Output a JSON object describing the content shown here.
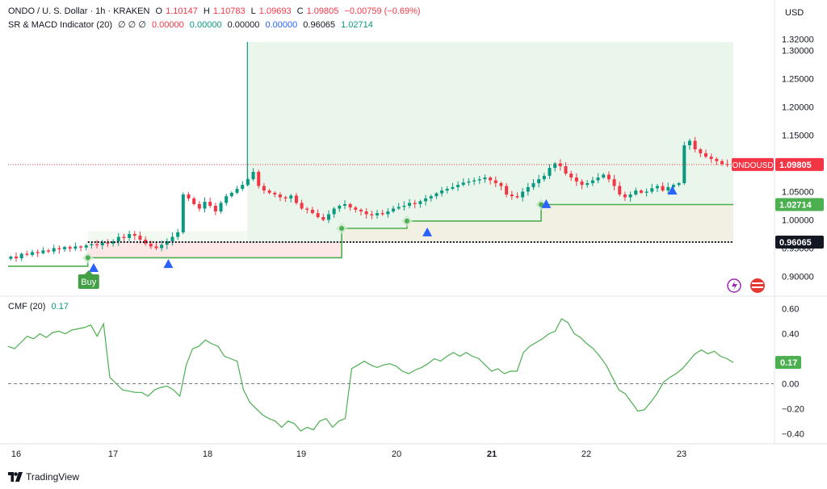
{
  "header": {
    "symbol": "ONDO / U. S. Dollar · 1h · KRAKEN",
    "o_label": "O",
    "o": "1.10147",
    "h_label": "H",
    "h": "1.10783",
    "l_label": "L",
    "l": "1.09693",
    "c_label": "C",
    "c": "1.09805",
    "change": "−0.00759 (−0.69%)",
    "indicator": "SR & MACD Indicator (20)",
    "indicator_flags": "∅ ∅ ∅",
    "ind_values": [
      "0.00000",
      "0.00000",
      "0.00000",
      "0.00000",
      "0.96065",
      "1.02714"
    ]
  },
  "currency": "USD",
  "price_badges": {
    "symbol_label": "ONDOUSD",
    "last": "1.09805",
    "resistance": "1.02714",
    "support": "0.96065"
  },
  "buy_label": "Buy",
  "cmf": {
    "label": "CMF (20)",
    "value": "0.17",
    "badge": "0.17"
  },
  "footer": {
    "brand": "TradingView"
  },
  "colors": {
    "up": "#089981",
    "down": "#f23645",
    "sr_line": "#4caf50",
    "signal": "#2962ff",
    "cmf_line": "#4caf50"
  },
  "chart_data": [
    {
      "type": "candlestick",
      "title": "ONDO / U. S. Dollar · 1h · KRAKEN",
      "x_labels": [
        "16",
        "17",
        "18",
        "19",
        "20",
        "21",
        "22",
        "23"
      ],
      "y_ticks": [
        "1.32000",
        "1.30000",
        "1.25000",
        "1.20000",
        "1.15000",
        "1.10000",
        "1.05000",
        "1.00000",
        "0.95000",
        "0.90000"
      ],
      "ylim": [
        0.875,
        1.335
      ],
      "close_series": [
        0.935,
        0.932,
        0.94,
        0.938,
        0.943,
        0.941,
        0.946,
        0.944,
        0.95,
        0.948,
        0.952,
        0.949,
        0.953,
        0.951,
        0.955,
        0.957,
        0.955,
        0.96,
        0.958,
        0.962,
        0.97,
        0.968,
        0.975,
        0.972,
        0.965,
        0.958,
        0.953,
        0.95,
        0.956,
        0.962,
        0.97,
        0.978,
        1.045,
        1.038,
        1.028,
        1.02,
        1.032,
        1.025,
        1.015,
        1.03,
        1.042,
        1.048,
        1.055,
        1.062,
        1.072,
        1.085,
        1.06,
        1.052,
        1.048,
        1.045,
        1.04,
        1.038,
        1.043,
        1.03,
        1.02,
        1.018,
        1.012,
        1.005,
        1.0,
        1.01,
        1.02,
        1.025,
        1.028,
        1.022,
        1.018,
        1.015,
        1.01,
        1.008,
        1.012,
        1.01,
        1.015,
        1.02,
        1.023,
        1.025,
        1.03,
        1.028,
        1.033,
        1.038,
        1.042,
        1.047,
        1.052,
        1.055,
        1.058,
        1.062,
        1.066,
        1.068,
        1.07,
        1.072,
        1.075,
        1.07,
        1.065,
        1.06,
        1.045,
        1.042,
        1.04,
        1.05,
        1.058,
        1.065,
        1.072,
        1.078,
        1.092,
        1.1,
        1.095,
        1.082,
        1.075,
        1.068,
        1.062,
        1.065,
        1.07,
        1.075,
        1.08,
        1.072,
        1.06,
        1.045,
        1.04,
        1.045,
        1.052,
        1.048,
        1.05,
        1.056,
        1.06,
        1.052,
        1.058,
        1.062,
        1.065,
        1.132,
        1.14,
        1.125,
        1.118,
        1.112,
        1.108,
        1.104,
        1.099,
        1.098
      ],
      "support_resistance": {
        "support_level": 0.96065,
        "resistance_level": 1.02714,
        "red_line_x": [
          0,
          0.38
        ],
        "green_steps": [
          {
            "x0": 0.0,
            "x1": 0.11,
            "y": 0.918
          },
          {
            "x0": 0.11,
            "x1": 0.46,
            "y": 0.933
          },
          {
            "x0": 0.46,
            "x1": 0.55,
            "y": 0.985
          },
          {
            "x0": 0.55,
            "x1": 0.735,
            "y": 0.998
          },
          {
            "x0": 0.735,
            "x1": 1.0,
            "y": 1.02714
          }
        ],
        "resistance_spike": {
          "x": 0.33,
          "y": 1.315
        }
      },
      "signals": {
        "buy_triangles_x": [
          0.118,
          0.221,
          0.578,
          0.742,
          0.916
        ],
        "buy_triangles_y": [
          0.935,
          0.942,
          0.998,
          1.048,
          1.072
        ]
      }
    },
    {
      "type": "line",
      "title": "CMF (20)",
      "y_ticks": [
        "0.60",
        "0.40",
        "0.20",
        "0.00",
        "−0.20",
        "−0.40"
      ],
      "ylim": [
        -0.45,
        0.65
      ],
      "values": [
        0.3,
        0.28,
        0.33,
        0.38,
        0.36,
        0.4,
        0.37,
        0.41,
        0.42,
        0.4,
        0.43,
        0.44,
        0.45,
        0.47,
        0.38,
        0.48,
        0.05,
        0.0,
        -0.05,
        -0.06,
        -0.07,
        -0.07,
        -0.1,
        -0.05,
        -0.03,
        -0.02,
        -0.05,
        -0.1,
        0.15,
        0.28,
        0.3,
        0.35,
        0.32,
        0.3,
        0.22,
        0.2,
        0.18,
        -0.05,
        -0.15,
        -0.2,
        -0.25,
        -0.28,
        -0.3,
        -0.35,
        -0.3,
        -0.32,
        -0.38,
        -0.35,
        -0.37,
        -0.3,
        -0.28,
        -0.35,
        -0.3,
        -0.28,
        0.12,
        0.15,
        0.18,
        0.15,
        0.13,
        0.15,
        0.16,
        0.14,
        0.1,
        0.08,
        0.11,
        0.13,
        0.16,
        0.2,
        0.18,
        0.22,
        0.25,
        0.22,
        0.25,
        0.22,
        0.2,
        0.15,
        0.1,
        0.12,
        0.08,
        0.1,
        0.1,
        0.25,
        0.3,
        0.33,
        0.36,
        0.4,
        0.42,
        0.52,
        0.49,
        0.4,
        0.37,
        0.32,
        0.28,
        0.22,
        0.15,
        0.05,
        -0.05,
        -0.08,
        -0.15,
        -0.22,
        -0.21,
        -0.15,
        -0.08,
        0.01,
        0.05,
        0.08,
        0.12,
        0.18,
        0.24,
        0.27,
        0.24,
        0.26,
        0.22,
        0.2,
        0.17
      ]
    }
  ]
}
